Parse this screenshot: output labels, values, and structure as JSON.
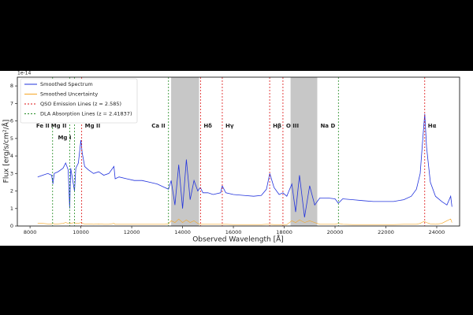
{
  "chart_data": {
    "type": "line",
    "x_label": "Observed Wavelength [Å]",
    "y_label": "Flux [erg/s/cm²/Å]",
    "y_offset_label": "1e-14",
    "xlim": [
      7500,
      24900
    ],
    "ylim": [
      0,
      8.5
    ],
    "xticks": [
      8000,
      10000,
      12000,
      14000,
      16000,
      18000,
      20000,
      22000,
      24000
    ],
    "yticks": [
      0,
      1,
      2,
      3,
      4,
      5,
      6,
      7,
      8
    ],
    "shaded_regions": [
      [
        13550,
        14650
      ],
      [
        18250,
        19300
      ]
    ],
    "shade_color": "#999999",
    "x": [
      8300,
      8500,
      8700,
      8850,
      8900,
      8950,
      9100,
      9300,
      9400,
      9500,
      9560,
      9600,
      9750,
      9800,
      9900,
      10000,
      10050,
      10150,
      10300,
      10500,
      10700,
      10900,
      11100,
      11300,
      11350,
      11500,
      11800,
      12100,
      12400,
      12700,
      13000,
      13300,
      13450,
      13550,
      13700,
      13850,
      14000,
      14150,
      14300,
      14450,
      14600,
      14700,
      14800,
      15000,
      15200,
      15500,
      15560,
      15700,
      16000,
      16400,
      16800,
      17100,
      17300,
      17430,
      17600,
      17800,
      17950,
      18100,
      18300,
      18450,
      18600,
      18800,
      19000,
      19200,
      19400,
      19700,
      20000,
      20130,
      20300,
      20700,
      21100,
      21500,
      21900,
      22300,
      22700,
      23000,
      23200,
      23350,
      23480,
      23530,
      23600,
      23750,
      23950,
      24200,
      24400,
      24550,
      24600
    ],
    "series": [
      {
        "name": "Smoothed Spectrum",
        "color": "#2233dd",
        "values": [
          2.8,
          2.9,
          3.0,
          2.9,
          2.4,
          3.0,
          3.1,
          3.3,
          3.6,
          3.2,
          1.0,
          3.3,
          2.0,
          3.3,
          3.6,
          4.9,
          4.2,
          3.4,
          3.2,
          3.0,
          3.1,
          2.9,
          3.0,
          3.4,
          2.7,
          2.8,
          2.7,
          2.6,
          2.6,
          2.5,
          2.4,
          2.2,
          2.1,
          2.6,
          1.2,
          3.5,
          1.0,
          3.8,
          1.5,
          2.6,
          2.0,
          2.2,
          1.9,
          1.9,
          1.8,
          1.9,
          2.3,
          1.9,
          1.8,
          1.75,
          1.7,
          1.75,
          2.1,
          3.0,
          2.2,
          1.8,
          1.9,
          1.7,
          2.4,
          0.8,
          2.9,
          0.5,
          2.3,
          1.2,
          1.6,
          1.6,
          1.55,
          1.3,
          1.55,
          1.5,
          1.45,
          1.4,
          1.4,
          1.4,
          1.5,
          1.7,
          2.1,
          3.0,
          5.5,
          6.4,
          4.5,
          2.5,
          1.7,
          1.4,
          1.2,
          1.7,
          1.1
        ]
      },
      {
        "name": "Smoothed Uncertainty",
        "color": "#f5a623",
        "values": [
          0.15,
          0.15,
          0.12,
          0.12,
          0.15,
          0.12,
          0.12,
          0.15,
          0.2,
          0.15,
          0.2,
          0.15,
          0.2,
          0.15,
          0.15,
          0.2,
          0.15,
          0.12,
          0.12,
          0.1,
          0.12,
          0.1,
          0.1,
          0.15,
          0.1,
          0.1,
          0.1,
          0.1,
          0.1,
          0.1,
          0.1,
          0.1,
          0.12,
          0.3,
          0.2,
          0.4,
          0.2,
          0.35,
          0.2,
          0.3,
          0.15,
          0.1,
          0.1,
          0.1,
          0.1,
          0.1,
          0.1,
          0.1,
          0.08,
          0.08,
          0.08,
          0.08,
          0.1,
          0.1,
          0.08,
          0.08,
          0.08,
          0.08,
          0.3,
          0.2,
          0.35,
          0.2,
          0.3,
          0.2,
          0.1,
          0.1,
          0.1,
          0.15,
          0.1,
          0.08,
          0.08,
          0.08,
          0.08,
          0.08,
          0.1,
          0.1,
          0.1,
          0.15,
          0.25,
          0.25,
          0.2,
          0.12,
          0.1,
          0.15,
          0.3,
          0.4,
          0.2
        ]
      }
    ],
    "emission_lines": {
      "name": "QSO Emission Lines (z = 2.585)",
      "color": "#dd1111",
      "lines": [
        {
          "label": "Mg II",
          "wavelength": 10032
        },
        {
          "label": "Hδ",
          "wavelength": 14706
        },
        {
          "label": "Hγ",
          "wavelength": 15563
        },
        {
          "label": "Hβ",
          "wavelength": 17428
        },
        {
          "label": "O III",
          "wavelength": 17950
        },
        {
          "label": "Hα",
          "wavelength": 23528
        }
      ]
    },
    "absorption_lines": {
      "name": "DLA Absorption Lines (z = 2.41837)",
      "color": "#228b22",
      "lines": [
        {
          "label": "Fe II",
          "wavelength": 8888
        },
        {
          "label": "Mg II",
          "wavelength": 9558
        },
        {
          "label": "Mg I",
          "wavelength": 9749
        },
        {
          "label": "Ca II",
          "wavelength": 13447
        },
        {
          "label": "Na D",
          "wavelength": 20133
        }
      ]
    }
  }
}
